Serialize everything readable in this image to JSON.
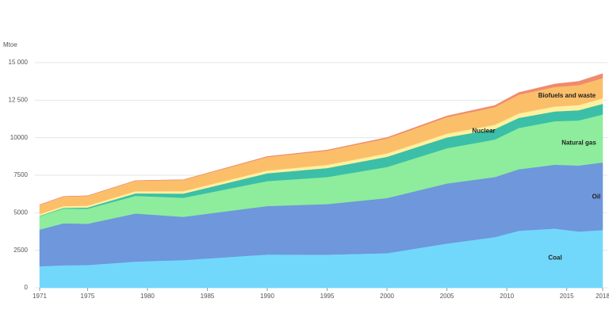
{
  "chart_data": {
    "type": "stacked_area",
    "y_label": "Mtoe",
    "x": [
      1971,
      1973,
      1975,
      1979,
      1983,
      1990,
      1995,
      2000,
      2005,
      2009,
      2011,
      2014,
      2016,
      2018
    ],
    "series": [
      {
        "name": "Coal",
        "color": "#72d8fb",
        "values": [
          1440,
          1500,
          1520,
          1750,
          1850,
          2220,
          2210,
          2310,
          2950,
          3380,
          3800,
          3950,
          3750,
          3850
        ]
      },
      {
        "name": "Oil",
        "color": "#6e97dc",
        "values": [
          2440,
          2800,
          2750,
          3200,
          2880,
          3230,
          3370,
          3670,
          4000,
          4000,
          4100,
          4250,
          4400,
          4500
        ]
      },
      {
        "name": "Natural gas",
        "color": "#8ded9c",
        "values": [
          890,
          980,
          1000,
          1180,
          1270,
          1660,
          1800,
          2070,
          2350,
          2500,
          2750,
          2900,
          3000,
          3200
        ]
      },
      {
        "name": "Nuclear",
        "color": "#3bbfa8",
        "values": [
          30,
          50,
          80,
          160,
          280,
          520,
          600,
          680,
          720,
          700,
          670,
          650,
          680,
          710
        ]
      },
      {
        "color": "#fdf1a0",
        "values": [
          110,
          115,
          125,
          145,
          160,
          185,
          210,
          225,
          250,
          280,
          300,
          330,
          345,
          360
        ]
      },
      {
        "name": "Biofuels and waste",
        "color": "#fbbf6a",
        "values": [
          620,
          640,
          650,
          700,
          750,
          900,
          950,
          1000,
          1100,
          1180,
          1250,
          1300,
          1330,
          1350
        ]
      },
      {
        "color": "#f08a6f",
        "values": [
          5,
          6,
          7,
          10,
          12,
          35,
          40,
          60,
          80,
          110,
          140,
          200,
          250,
          300
        ]
      }
    ],
    "xlim": [
      1971,
      2018
    ],
    "xticks": [
      1971,
      1975,
      1980,
      1985,
      1990,
      1995,
      2000,
      2005,
      2010,
      2015,
      2018
    ],
    "ylim": [
      0,
      15000
    ],
    "yticks": [
      0,
      2500,
      5000,
      7500,
      10000,
      {
        "value": 12500,
        "label": "12 500"
      },
      {
        "value": 15000,
        "label": "15 000"
      }
    ],
    "grid": true
  }
}
